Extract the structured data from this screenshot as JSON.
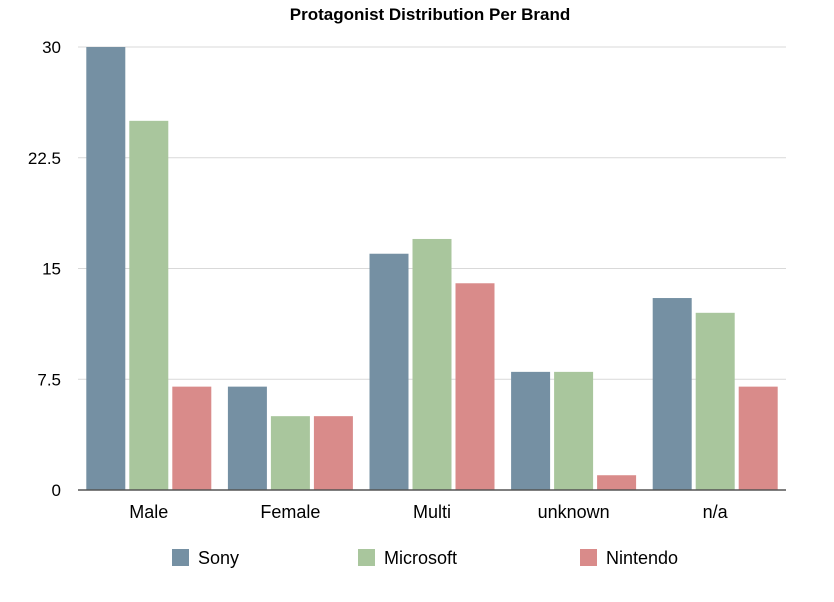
{
  "chart_data": {
    "type": "bar",
    "title": "Protagonist Distribution Per Brand",
    "xlabel": "",
    "ylabel": "",
    "categories": [
      "Male",
      "Female",
      "Multi",
      "unknown",
      "n/a"
    ],
    "series": [
      {
        "name": "Sony",
        "color": "#7590a3",
        "values": [
          30,
          7,
          16,
          8,
          13
        ]
      },
      {
        "name": "Microsoft",
        "color": "#a9c69d",
        "values": [
          25,
          5,
          17,
          8,
          12
        ]
      },
      {
        "name": "Nintendo",
        "color": "#d98b8a",
        "values": [
          7,
          5,
          14,
          1,
          7
        ]
      }
    ],
    "ylim": [
      0,
      30
    ],
    "yticks": [
      0,
      7.5,
      15,
      22.5,
      30
    ],
    "ytick_labels": [
      "0",
      "7.5",
      "15",
      "22.5",
      "30"
    ],
    "grid": true,
    "legend_position": "bottom"
  }
}
